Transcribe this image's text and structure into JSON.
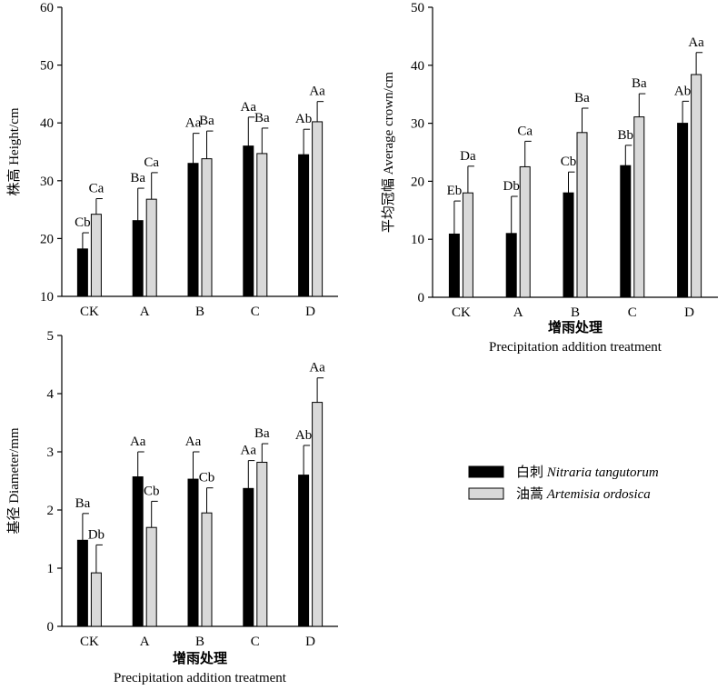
{
  "legend": {
    "items": [
      {
        "zh": "白刺",
        "latin": "Nitraria tangutorum",
        "color": "#000000"
      },
      {
        "zh": "油蒿",
        "latin": "Artemisia ordosica",
        "color": "#d9d9d9"
      }
    ]
  },
  "chart_data": [
    {
      "type": "bar",
      "ylabel": "株高 Height/cm",
      "xlabel_zh": "",
      "xlabel_en": "",
      "categories": [
        "CK",
        "A",
        "B",
        "C",
        "D"
      ],
      "ylim": [
        10,
        60
      ],
      "yticks": [
        10,
        20,
        30,
        40,
        50,
        60
      ],
      "series": [
        {
          "name": "白刺 Nitraria tangutorum",
          "color": "#000000",
          "values": [
            18.2,
            23.1,
            33.0,
            36.0,
            34.5
          ],
          "errors": [
            2.8,
            5.6,
            5.2,
            5.0,
            4.4
          ],
          "labels": [
            "Cb",
            "Ba",
            "Aa",
            "Aa",
            "Ab"
          ]
        },
        {
          "name": "油蒿 Artemisia ordosica",
          "color": "#d9d9d9",
          "values": [
            24.2,
            26.8,
            33.8,
            34.7,
            40.2
          ],
          "errors": [
            2.7,
            4.6,
            4.8,
            4.4,
            3.5
          ],
          "labels": [
            "Ca",
            "Ca",
            "Ba",
            "Ba",
            "Aa"
          ]
        }
      ]
    },
    {
      "type": "bar",
      "ylabel": "平均冠幅 Average crown/cm",
      "xlabel_zh": "增雨处理",
      "xlabel_en": "Precipitation addition treatment",
      "categories": [
        "CK",
        "A",
        "B",
        "C",
        "D"
      ],
      "ylim": [
        0,
        50
      ],
      "yticks": [
        0,
        10,
        20,
        30,
        40,
        50
      ],
      "series": [
        {
          "name": "白刺 Nitraria tangutorum",
          "color": "#000000",
          "values": [
            10.9,
            11.0,
            18.0,
            22.7,
            30.0
          ],
          "errors": [
            5.7,
            6.4,
            3.6,
            3.5,
            3.8
          ],
          "labels": [
            "Eb",
            "Db",
            "Cb",
            "Bb",
            "Ab"
          ]
        },
        {
          "name": "油蒿 Artemisia ordosica",
          "color": "#d9d9d9",
          "values": [
            18.0,
            22.5,
            28.4,
            31.1,
            38.4
          ],
          "errors": [
            4.6,
            4.4,
            4.2,
            4.0,
            3.8
          ],
          "labels": [
            "Da",
            "Ca",
            "Ba",
            "Ba",
            "Aa"
          ]
        }
      ]
    },
    {
      "type": "bar",
      "ylabel": "基径 Diameter/mm",
      "xlabel_zh": "增雨处理",
      "xlabel_en": "Precipitation addition treatment",
      "categories": [
        "CK",
        "A",
        "B",
        "C",
        "D"
      ],
      "ylim": [
        0,
        5
      ],
      "yticks": [
        0,
        1,
        2,
        3,
        4,
        5
      ],
      "series": [
        {
          "name": "白刺 Nitraria tangutorum",
          "color": "#000000",
          "values": [
            1.48,
            2.57,
            2.53,
            2.37,
            2.6
          ],
          "errors": [
            0.46,
            0.43,
            0.47,
            0.48,
            0.51
          ],
          "labels": [
            "Ba",
            "Aa",
            "Aa",
            "Aa",
            "Ab"
          ]
        },
        {
          "name": "油蒿 Artemisia ordosica",
          "color": "#d9d9d9",
          "values": [
            0.92,
            1.7,
            1.95,
            2.82,
            3.85
          ],
          "errors": [
            0.48,
            0.45,
            0.43,
            0.32,
            0.42
          ],
          "labels": [
            "Db",
            "Cb",
            "Cb",
            "Ba",
            "Aa"
          ]
        }
      ]
    }
  ]
}
